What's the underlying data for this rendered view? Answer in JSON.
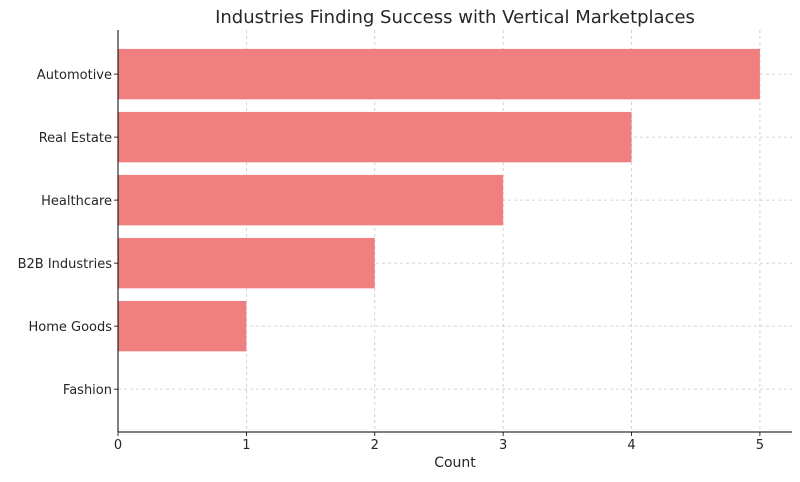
{
  "chart_data": {
    "type": "bar",
    "orientation": "horizontal",
    "title": "Industries Finding Success with Vertical Marketplaces",
    "xlabel": "Count",
    "ylabel": "",
    "categories": [
      "Fashion",
      "Home Goods",
      "B2B Industries",
      "Healthcare",
      "Real Estate",
      "Automotive"
    ],
    "values": [
      0,
      1,
      2,
      3,
      4,
      5
    ],
    "xlim": [
      0,
      5.25
    ],
    "xticks": [
      0,
      1,
      2,
      3,
      4,
      5
    ],
    "grid": true,
    "bar_color": "#F08080"
  }
}
